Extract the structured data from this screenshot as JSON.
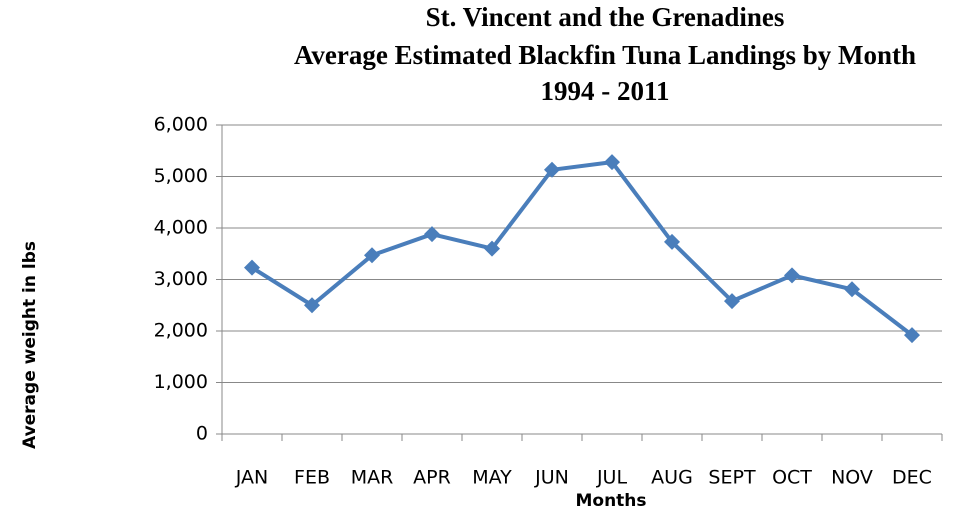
{
  "chart_data": {
    "type": "line",
    "title": [
      "St. Vincent and the Grenadines",
      "Average Estimated Blackfin Tuna Landings by Month",
      "1994 - 2011"
    ],
    "x_label": "Months",
    "y_label": "Average weight in lbs",
    "categories": [
      "JAN",
      "FEB",
      "MAR",
      "APR",
      "MAY",
      "JUN",
      "JUL",
      "AUG",
      "SEPT",
      "OCT",
      "NOV",
      "DEC"
    ],
    "series": [
      {
        "name": "Average weight",
        "color": "#4a7ebb",
        "values": [
          3230,
          2500,
          3470,
          3880,
          3600,
          5130,
          5280,
          3730,
          2580,
          3080,
          2810,
          1920
        ]
      }
    ],
    "ylim": [
      0,
      6000
    ],
    "yticks": [
      0,
      {
        "value": 1000,
        "label": "1,000"
      },
      {
        "value": 2000,
        "label": "2,000"
      },
      {
        "value": 3000,
        "label": "3,000"
      },
      {
        "value": 4000,
        "label": "4,000"
      },
      {
        "value": 5000,
        "label": "5,000"
      },
      {
        "value": 6000,
        "label": "6,000"
      }
    ],
    "grid": true,
    "marker": "diamond"
  }
}
